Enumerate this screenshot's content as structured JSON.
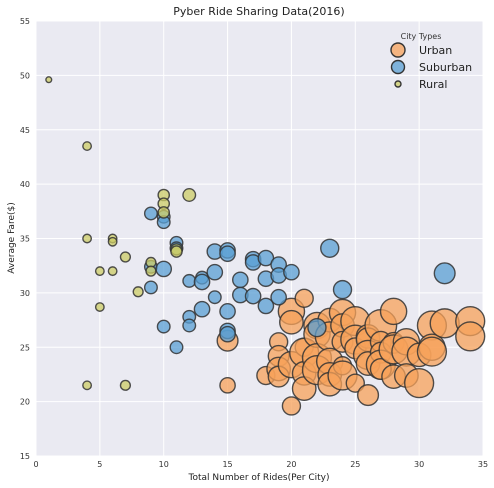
{
  "chart_data": {
    "type": "scatter",
    "title": "Pyber Ride Sharing Data(2016)",
    "xlabel": "Total Number of Rides(Per City)",
    "ylabel": "Average Fare($)",
    "xlim": [
      0,
      35
    ],
    "ylim": [
      15,
      55
    ],
    "xticks": [
      0,
      5,
      10,
      15,
      20,
      25,
      30,
      35
    ],
    "yticks": [
      15,
      20,
      25,
      30,
      35,
      40,
      45,
      50,
      55
    ],
    "grid": true,
    "legend": {
      "title": "City Types",
      "placement": "top-right"
    },
    "marker_size_encodes": "driver count",
    "series": [
      {
        "name": "Urban",
        "color": "#f7a15a",
        "points": [
          [
            15,
            25.6
          ],
          [
            15,
            21.5
          ],
          [
            18,
            22.4
          ],
          [
            19,
            25.5
          ],
          [
            19,
            24.2
          ],
          [
            19,
            23.0
          ],
          [
            19,
            22.3
          ],
          [
            20,
            28.3
          ],
          [
            20,
            27.3
          ],
          [
            20,
            23.4
          ],
          [
            20,
            19.6
          ],
          [
            21,
            29.5
          ],
          [
            21,
            25.0
          ],
          [
            21,
            24.5
          ],
          [
            21,
            22.6
          ],
          [
            21,
            21.2
          ],
          [
            22,
            27.0
          ],
          [
            22,
            26.2
          ],
          [
            22,
            24.0
          ],
          [
            22,
            22.9
          ],
          [
            23,
            27.5
          ],
          [
            23,
            26.0
          ],
          [
            23,
            23.7
          ],
          [
            23,
            22.5
          ],
          [
            23,
            21.6
          ],
          [
            24,
            28.2
          ],
          [
            24,
            27.0
          ],
          [
            24,
            25.5
          ],
          [
            24,
            23.3
          ],
          [
            24,
            22.4
          ],
          [
            25,
            27.4
          ],
          [
            25,
            25.7
          ],
          [
            25,
            24.9
          ],
          [
            25,
            21.7
          ],
          [
            26,
            26.0
          ],
          [
            26,
            25.7
          ],
          [
            26,
            24.3
          ],
          [
            26,
            23.5
          ],
          [
            26,
            20.6
          ],
          [
            27,
            27.0
          ],
          [
            27,
            25.5
          ],
          [
            27,
            24.5
          ],
          [
            27,
            23.4
          ],
          [
            27,
            23.0
          ],
          [
            28,
            28.3
          ],
          [
            28,
            25.4
          ],
          [
            28,
            24.8
          ],
          [
            28,
            22.3
          ],
          [
            29,
            25.5
          ],
          [
            29,
            24.6
          ],
          [
            29,
            22.4
          ],
          [
            30,
            24.3
          ],
          [
            30,
            21.7
          ],
          [
            31,
            27.0
          ],
          [
            31,
            25.0
          ],
          [
            31,
            24.6
          ],
          [
            32,
            27.2
          ],
          [
            34,
            27.4
          ],
          [
            34,
            26.0
          ]
        ],
        "sizes": [
          12,
          8,
          10,
          10,
          12,
          14,
          12,
          16,
          14,
          16,
          10,
          10,
          10,
          18,
          14,
          14,
          16,
          16,
          18,
          18,
          14,
          18,
          16,
          14,
          14,
          16,
          14,
          12,
          10,
          18,
          18,
          18,
          12,
          10,
          14,
          14,
          18,
          14,
          12,
          20,
          12,
          12,
          18,
          12,
          16,
          12,
          18,
          14,
          16,
          18,
          14,
          14,
          18,
          18,
          16,
          18,
          18,
          18,
          18
        ]
      },
      {
        "name": "Suburban",
        "color": "#5a9fd3",
        "points": [
          [
            9,
            37.3
          ],
          [
            9,
            32.4
          ],
          [
            9,
            30.5
          ],
          [
            10,
            37.0
          ],
          [
            10,
            36.5
          ],
          [
            10,
            32.2
          ],
          [
            10,
            26.9
          ],
          [
            11,
            34.6
          ],
          [
            11,
            34.1
          ],
          [
            11,
            25.0
          ],
          [
            12,
            31.1
          ],
          [
            12,
            27.8
          ],
          [
            12,
            27.0
          ],
          [
            13,
            31.4
          ],
          [
            13,
            31.0
          ],
          [
            13,
            28.5
          ],
          [
            14,
            33.8
          ],
          [
            14,
            31.9
          ],
          [
            14,
            29.6
          ],
          [
            15,
            33.9
          ],
          [
            15,
            33.6
          ],
          [
            15,
            28.3
          ],
          [
            15,
            26.5
          ],
          [
            15,
            26.2
          ],
          [
            16,
            31.2
          ],
          [
            16,
            29.8
          ],
          [
            17,
            33.1
          ],
          [
            17,
            32.8
          ],
          [
            17,
            29.7
          ],
          [
            18,
            33.2
          ],
          [
            18,
            31.3
          ],
          [
            18,
            28.8
          ],
          [
            19,
            32.6
          ],
          [
            19,
            31.6
          ],
          [
            19,
            29.6
          ],
          [
            20,
            31.9
          ],
          [
            22,
            26.8
          ],
          [
            23,
            34.1
          ],
          [
            24,
            30.3
          ],
          [
            32,
            31.8
          ]
        ],
        "sizes": [
          6,
          6,
          6,
          6,
          6,
          8,
          6,
          6,
          6,
          6,
          6,
          6,
          6,
          6,
          8,
          8,
          8,
          8,
          6,
          8,
          8,
          8,
          8,
          8,
          8,
          8,
          8,
          8,
          8,
          8,
          8,
          8,
          8,
          8,
          8,
          8,
          10,
          10,
          10,
          12
        ]
      },
      {
        "name": "Rural",
        "color": "#cccc66",
        "points": [
          [
            1,
            49.6
          ],
          [
            4,
            43.5
          ],
          [
            4,
            35.0
          ],
          [
            4,
            21.5
          ],
          [
            5,
            32.0
          ],
          [
            5,
            28.7
          ],
          [
            6,
            35.0
          ],
          [
            6,
            34.7
          ],
          [
            6,
            32.0
          ],
          [
            7,
            33.3
          ],
          [
            7,
            21.5
          ],
          [
            8,
            30.1
          ],
          [
            9,
            32.8
          ],
          [
            9,
            32.0
          ],
          [
            10,
            39.0
          ],
          [
            10,
            38.2
          ],
          [
            10,
            37.4
          ],
          [
            11,
            34.0
          ],
          [
            11,
            33.8
          ],
          [
            12,
            39.0
          ]
        ],
        "sizes": [
          1,
          3,
          3,
          3,
          3,
          3,
          3,
          3,
          3,
          4,
          4,
          4,
          4,
          4,
          5,
          5,
          5,
          5,
          5,
          6
        ]
      }
    ]
  }
}
